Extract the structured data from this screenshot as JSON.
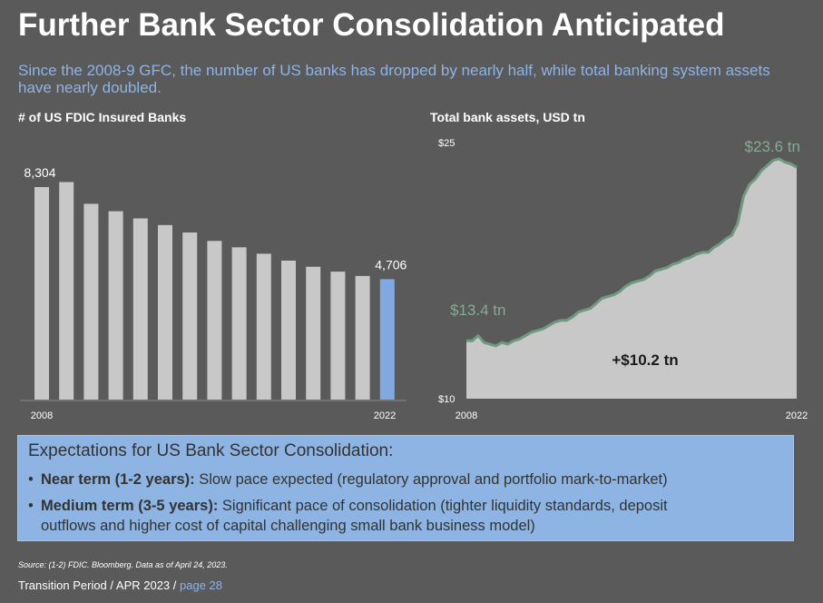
{
  "header": {
    "title": "Further Bank Sector Consolidation Anticipated",
    "subtitle": "Since the 2008-9 GFC, the number of US banks has dropped by nearly half, while total banking system assets have nearly doubled."
  },
  "chart_data": [
    {
      "type": "bar",
      "title": "# of US FDIC Insured Banks",
      "x_tick_labels": [
        "2008",
        "2022"
      ],
      "values": [
        8304,
        8500,
        7650,
        7360,
        7080,
        6820,
        6530,
        6200,
        5950,
        5700,
        5430,
        5190,
        5000,
        4830,
        4706
      ],
      "data_labels": [
        {
          "index": 0,
          "text": "8,304"
        },
        {
          "index": 14,
          "text": "4,706"
        }
      ],
      "highlight_index": 14,
      "colors": {
        "bar": "#c8c8c8",
        "highlight": "#7fa9df"
      },
      "ylim": [
        0,
        9300
      ]
    },
    {
      "type": "area",
      "title": "Total bank assets, USD tn",
      "x": [
        2008.0,
        2008.25,
        2008.5,
        2008.75,
        2009.0,
        2009.25,
        2009.5,
        2009.75,
        2010.0,
        2010.25,
        2010.5,
        2010.75,
        2011.0,
        2011.25,
        2011.5,
        2011.75,
        2012.0,
        2012.25,
        2012.5,
        2012.75,
        2013.0,
        2013.25,
        2013.5,
        2013.75,
        2014.0,
        2014.25,
        2014.5,
        2014.75,
        2015.0,
        2015.25,
        2015.5,
        2015.75,
        2016.0,
        2016.25,
        2016.5,
        2016.75,
        2017.0,
        2017.25,
        2017.5,
        2017.75,
        2018.0,
        2018.25,
        2018.5,
        2018.75,
        2019.0,
        2019.25,
        2019.5,
        2019.75,
        2020.0,
        2020.25,
        2020.5,
        2020.75,
        2021.0,
        2021.25,
        2021.5,
        2021.75,
        2022.0
      ],
      "y": [
        13.4,
        13.4,
        13.7,
        13.3,
        13.2,
        13.1,
        13.3,
        13.2,
        13.4,
        13.5,
        13.7,
        13.9,
        14.0,
        14.1,
        14.3,
        14.5,
        14.6,
        14.6,
        14.8,
        15.1,
        15.2,
        15.3,
        15.6,
        15.9,
        16.0,
        16.1,
        16.3,
        16.6,
        16.8,
        16.9,
        17.0,
        17.2,
        17.5,
        17.6,
        17.7,
        17.9,
        18.0,
        18.2,
        18.3,
        18.5,
        18.6,
        18.6,
        18.9,
        19.1,
        19.4,
        19.6,
        20.3,
        21.9,
        22.6,
        22.9,
        23.4,
        23.7,
        24.0,
        24.1,
        23.9,
        23.8,
        23.6
      ],
      "x_tick_labels": [
        "2008",
        "2022"
      ],
      "y_tick_labels": [
        "$25",
        "$10"
      ],
      "ylim": [
        10,
        25
      ],
      "annotations": {
        "start": "$13.4 tn",
        "end": "$23.6 tn",
        "change": "+$10.2 tn"
      },
      "colors": {
        "fill": "#c8c8c8",
        "line": "#6f9a82",
        "annotation": "#86aa94"
      }
    }
  ],
  "expectations": {
    "title": "Expectations for US Bank Sector Consolidation:",
    "bullet_char": "•",
    "items": [
      {
        "term": "Near term (1-2 years):",
        "text": " Slow pace expected (regulatory approval and portfolio mark-to-market)",
        "cont": ""
      },
      {
        "term": "Medium term (3-5 years):",
        "text": " Significant pace of consolidation (tighter liquidity standards, deposit",
        "cont": "outflows and higher cost of capital challenging small bank business model)"
      }
    ]
  },
  "footer": {
    "source": "Source: (1-2) FDIC. Bloomberg. Data as of April 24, 2023.",
    "period": "Transition Period / APR 2023 / ",
    "page": "page 28"
  }
}
